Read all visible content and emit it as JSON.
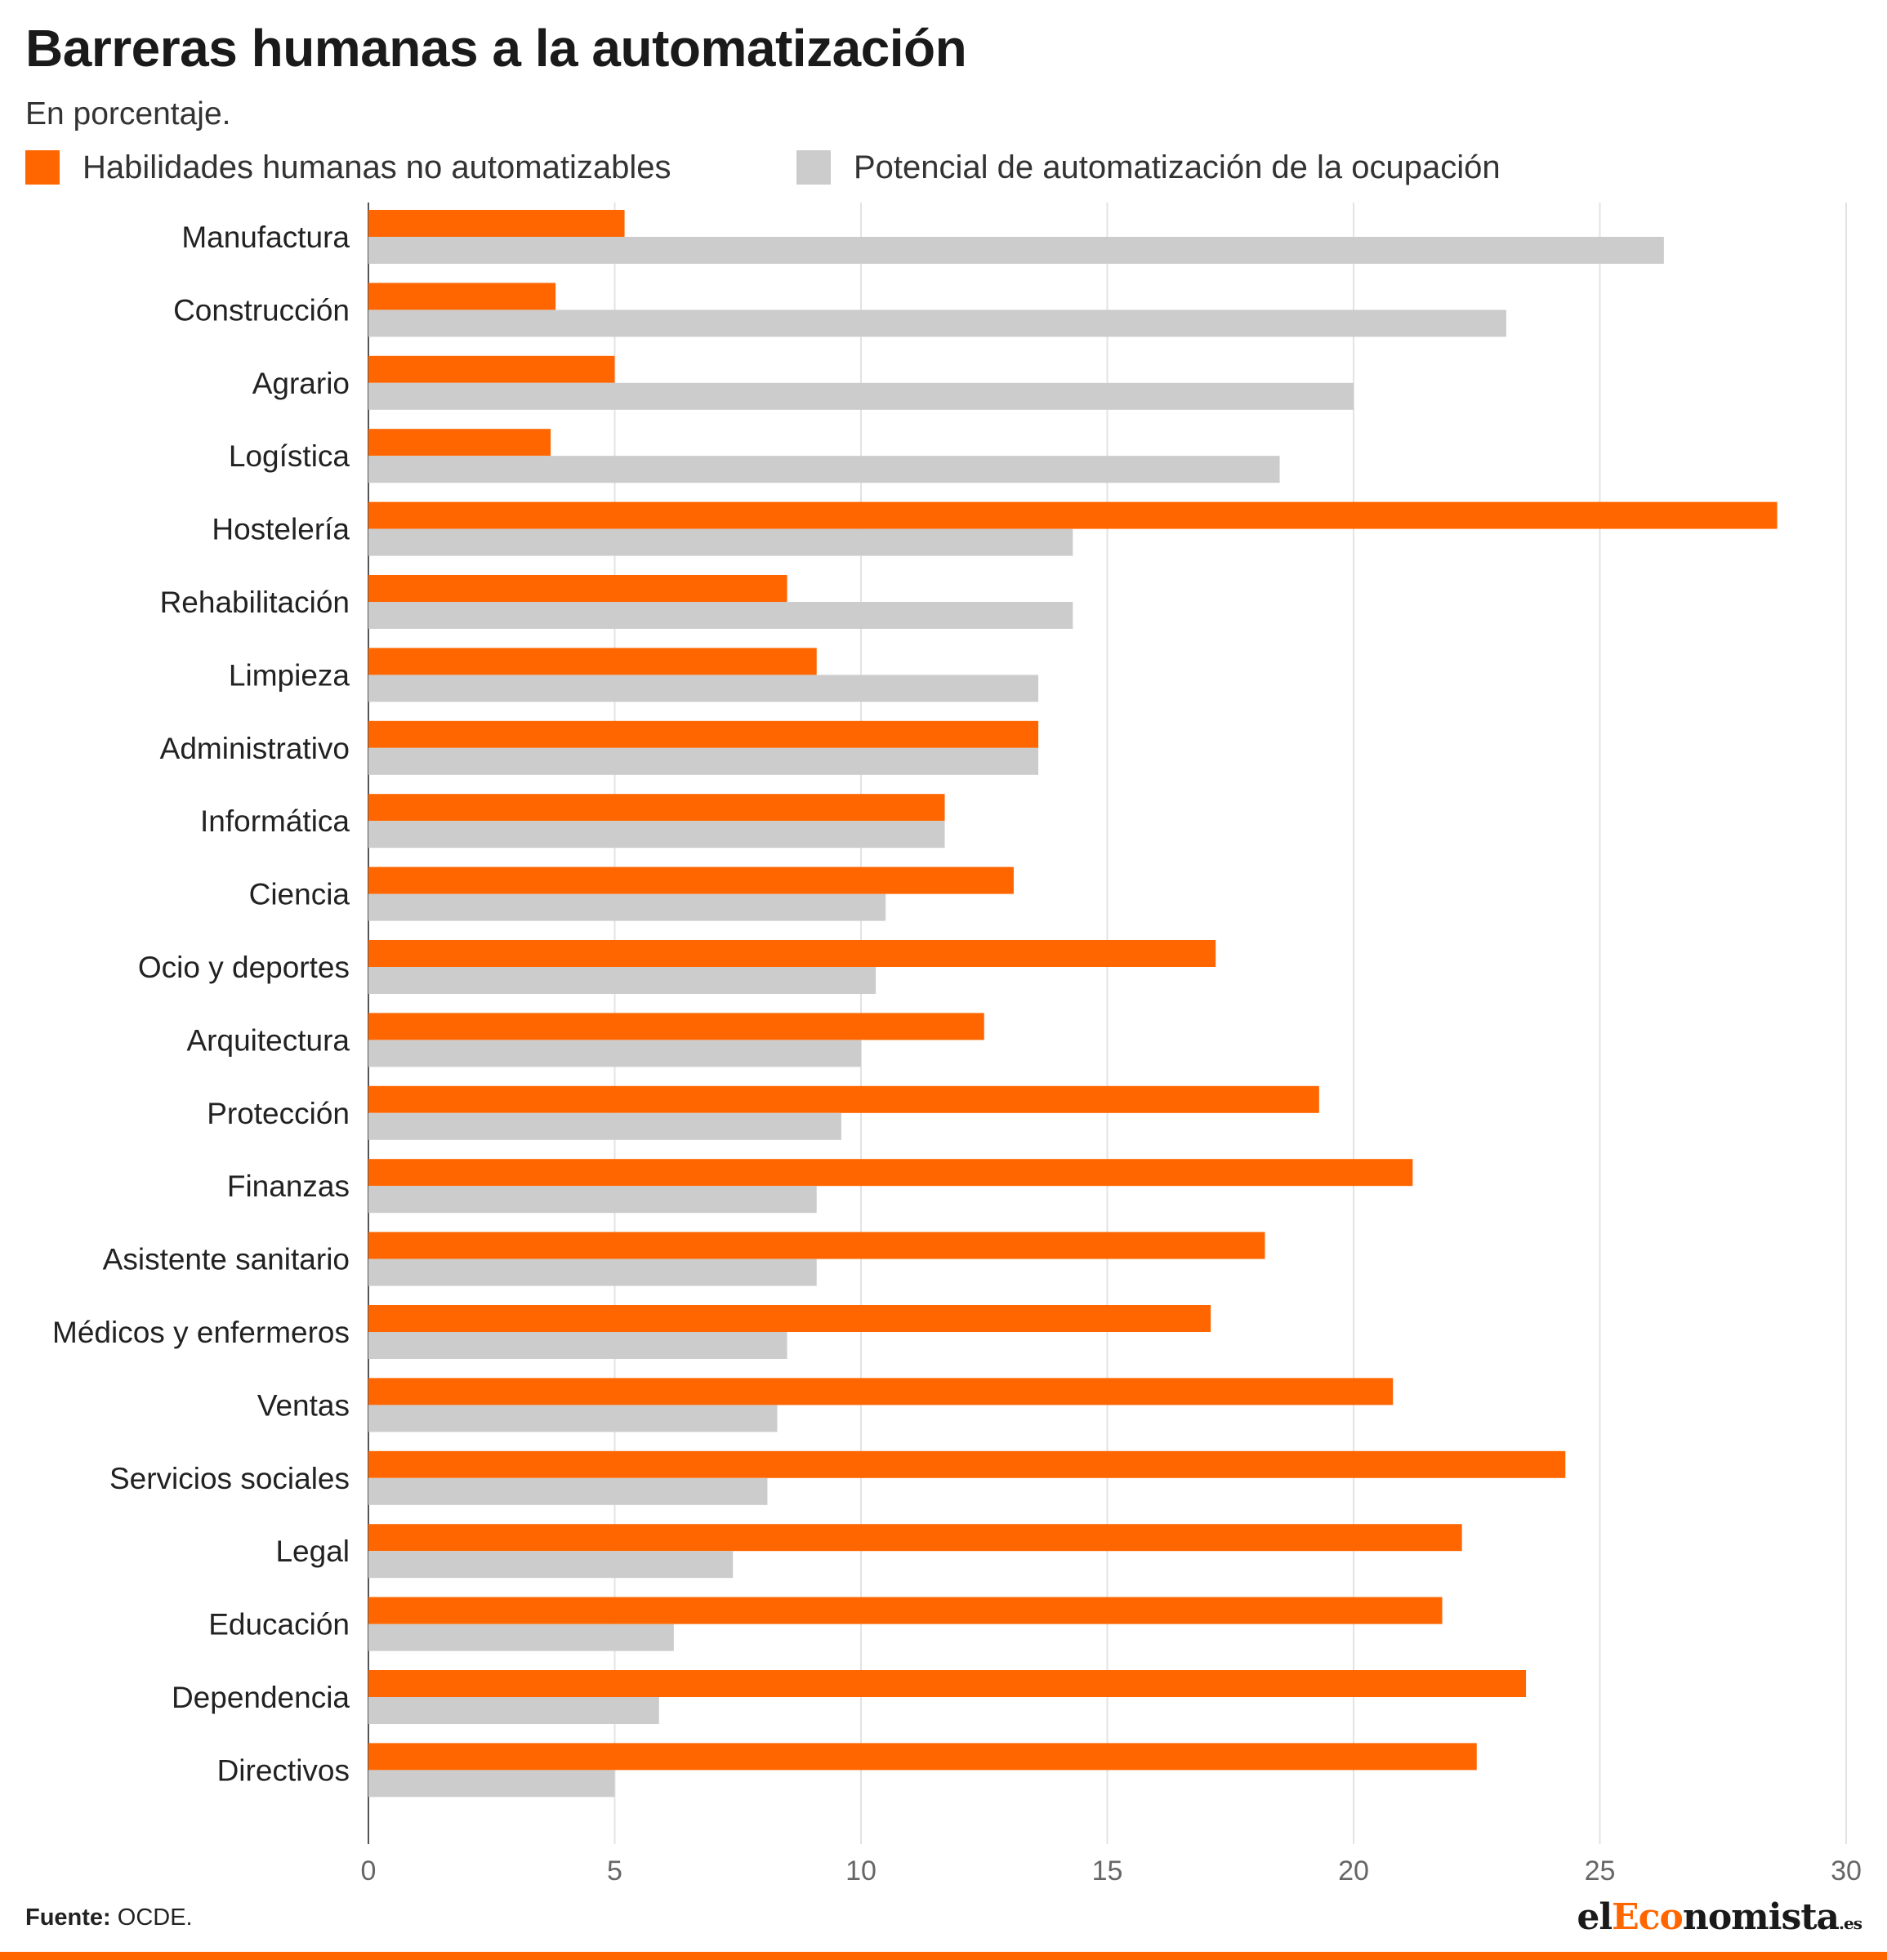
{
  "chart_data": {
    "type": "bar",
    "orientation": "horizontal",
    "title": "Barreras humanas a la automatización",
    "subtitle": "En porcentaje.",
    "categories": [
      "Manufactura",
      "Construcción",
      "Agrario",
      "Logística",
      "Hostelería",
      "Rehabilitación",
      "Limpieza",
      "Administrativo",
      "Informática",
      "Ciencia",
      "Ocio y deportes",
      "Arquitectura",
      "Protección",
      "Finanzas",
      "Asistente sanitario",
      "Médicos y enfermeros",
      "Ventas",
      "Servicios sociales",
      "Legal",
      "Educación",
      "Dependencia",
      "Directivos"
    ],
    "series": [
      {
        "name": "Habilidades humanas no automatizables",
        "color": "#ff6600",
        "values": [
          5.2,
          3.8,
          5.0,
          3.7,
          28.6,
          8.5,
          9.1,
          13.6,
          11.7,
          13.1,
          17.2,
          12.5,
          19.3,
          21.2,
          18.2,
          17.1,
          20.8,
          24.3,
          22.2,
          21.8,
          23.5,
          22.5
        ]
      },
      {
        "name": "Potencial de automatización de la ocupación",
        "color": "#cccccc",
        "values": [
          26.3,
          23.1,
          20.0,
          18.5,
          14.3,
          14.3,
          13.6,
          13.6,
          11.7,
          10.5,
          10.3,
          10.0,
          9.6,
          9.1,
          9.1,
          8.5,
          8.3,
          8.1,
          7.4,
          6.2,
          5.9,
          5.0
        ]
      }
    ],
    "xlim": [
      0,
      30
    ],
    "xticks": [
      "0",
      "5",
      "10",
      "15",
      "20",
      "25",
      "30"
    ],
    "grid": true,
    "legend_position": "top-left"
  },
  "source": {
    "label": "Fuente:",
    "value": " OCDE."
  },
  "logo": {
    "part1": "el",
    "part2": "Eco",
    "part3": "nomista",
    "suffix": ".es"
  }
}
